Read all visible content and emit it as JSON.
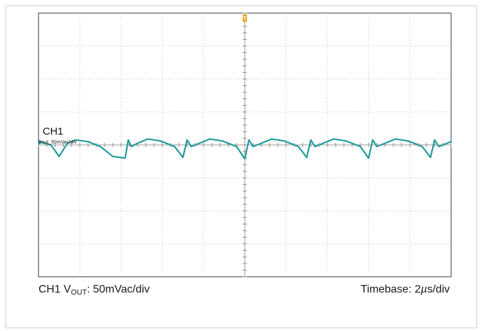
{
  "chart_data": {
    "type": "line",
    "title": "",
    "channel_label": "CH1",
    "channel_sublabel": "Vout_50mVac/div",
    "divisions": {
      "x": 10,
      "y": 8
    },
    "ylim": [
      -4,
      4
    ],
    "xlim": [
      0,
      20
    ],
    "x_unit": "µs",
    "y_unit": "mV",
    "trigger_marker": "T",
    "series": [
      {
        "name": "",
        "color": "#1f9a9a",
        "x": [
          0,
          0.6,
          1.0,
          1.4,
          1.8,
          2.4,
          3.0,
          3.6,
          4.2,
          4.35,
          4.5,
          4.8,
          5.3,
          5.9,
          6.6,
          7.0,
          7.2,
          7.4,
          7.8,
          8.3,
          8.9,
          9.6,
          10.0,
          10.2,
          10.4,
          10.8,
          11.3,
          11.9,
          12.6,
          13.0,
          13.2,
          13.4,
          13.8,
          14.3,
          14.9,
          15.6,
          16.0,
          16.2,
          16.4,
          16.8,
          17.3,
          17.9,
          18.6,
          19.0,
          19.2,
          19.4,
          19.8,
          20.0
        ],
        "y": [
          0.1,
          0.0,
          -0.35,
          0.05,
          0.15,
          0.1,
          -0.05,
          -0.35,
          -0.4,
          0.15,
          -0.05,
          0.05,
          0.18,
          0.12,
          -0.05,
          -0.38,
          0.15,
          -0.05,
          0.05,
          0.18,
          0.12,
          -0.05,
          -0.42,
          0.15,
          -0.05,
          0.05,
          0.18,
          0.12,
          -0.05,
          -0.38,
          0.15,
          -0.05,
          0.05,
          0.18,
          0.12,
          -0.05,
          -0.4,
          0.15,
          -0.05,
          0.05,
          0.18,
          0.12,
          -0.05,
          -0.38,
          0.15,
          -0.05,
          0.05,
          0.1
        ]
      }
    ]
  },
  "captions": {
    "left_prefix": "CH1 V",
    "left_sub": "OUT",
    "left_suffix": ": 50mVac/div",
    "right_prefix": "Timebase: 2",
    "right_mu": "µ",
    "right_suffix": "s/div"
  },
  "colors": {
    "trace": "#1f9a9a",
    "grid": "#b8b8b8",
    "border": "#333333",
    "trigger": "#f0a020"
  }
}
